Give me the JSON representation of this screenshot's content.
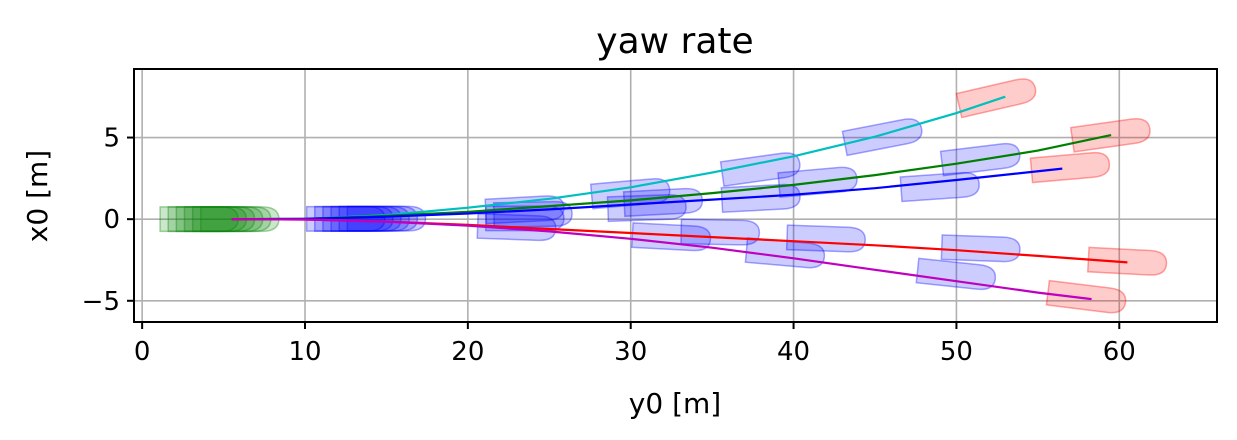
{
  "chart_data": {
    "type": "line",
    "title": "yaw rate",
    "xlabel": "y0 [m]",
    "ylabel": "x0 [m]",
    "xlim": [
      -0.5,
      66
    ],
    "ylim": [
      -6.3,
      9.2
    ],
    "xticks": [
      0,
      10,
      20,
      30,
      40,
      50,
      60
    ],
    "yticks": [
      -5,
      0,
      5
    ],
    "ytick_labels": [
      "−5",
      "0",
      "5"
    ],
    "grid": true,
    "series": [
      {
        "color": "#00bfbf",
        "x": [
          5.5,
          10,
          15,
          20,
          25,
          30,
          35,
          40,
          45,
          50,
          53
        ],
        "y": [
          0,
          0.02,
          0.25,
          0.7,
          1.25,
          1.95,
          2.85,
          3.85,
          5.05,
          6.5,
          7.5
        ]
      },
      {
        "color": "#008000",
        "x": [
          5.5,
          10,
          15,
          20,
          25,
          30,
          35,
          40,
          45,
          50,
          55,
          59.5
        ],
        "y": [
          0,
          0.02,
          0.2,
          0.45,
          0.8,
          1.15,
          1.6,
          2.1,
          2.7,
          3.4,
          4.2,
          5.15
        ]
      },
      {
        "color": "#0000ff",
        "x": [
          5.5,
          10,
          15,
          20,
          25,
          30,
          35,
          40,
          45,
          50,
          56.5
        ],
        "y": [
          0,
          0.02,
          0.15,
          0.35,
          0.6,
          0.9,
          1.2,
          1.5,
          1.9,
          2.4,
          3.1
        ]
      },
      {
        "color": "#ff0000",
        "x": [
          5.5,
          10,
          15,
          20,
          25,
          30,
          35,
          40,
          45,
          50,
          55,
          60.5
        ],
        "y": [
          0,
          -0.02,
          -0.15,
          -0.35,
          -0.6,
          -0.85,
          -1.1,
          -1.35,
          -1.6,
          -1.9,
          -2.25,
          -2.65
        ]
      },
      {
        "color": "#bf00bf",
        "x": [
          5.5,
          10,
          15,
          20,
          25,
          30,
          35,
          40,
          45,
          50,
          55,
          58.3
        ],
        "y": [
          0,
          -0.02,
          -0.15,
          -0.4,
          -0.75,
          -1.2,
          -1.75,
          -2.4,
          -3.1,
          -3.8,
          -4.5,
          -4.9
        ]
      }
    ],
    "vehicles": [
      {
        "x": 3.5,
        "y": 0,
        "angle": 0,
        "color": "#008000"
      },
      {
        "x": 4,
        "y": 0,
        "angle": 0,
        "color": "#008000"
      },
      {
        "x": 4.5,
        "y": 0,
        "angle": 0,
        "color": "#008000"
      },
      {
        "x": 5,
        "y": 0,
        "angle": 0,
        "color": "#008000"
      },
      {
        "x": 5.5,
        "y": 0,
        "angle": 0,
        "color": "#008000"
      },
      {
        "x": 6,
        "y": 0,
        "angle": 0,
        "color": "#008000"
      },
      {
        "x": 12.5,
        "y": 0.02,
        "angle": 0,
        "color": "#0000ff"
      },
      {
        "x": 13,
        "y": 0.02,
        "angle": 0,
        "color": "#0000ff"
      },
      {
        "x": 13.5,
        "y": 0.02,
        "angle": 0,
        "color": "#0000ff"
      },
      {
        "x": 14,
        "y": 0.02,
        "angle": 0,
        "color": "#0000ff"
      },
      {
        "x": 14.5,
        "y": 0.03,
        "angle": 0,
        "color": "#0000ff"
      },
      {
        "x": 15,
        "y": 0.03,
        "angle": 0,
        "color": "#0000ff"
      },
      {
        "x": 23.5,
        "y": 0.6,
        "angle": 3,
        "color": "#0000ff"
      },
      {
        "x": 24,
        "y": 0.3,
        "angle": 1,
        "color": "#0000ff"
      },
      {
        "x": 23.5,
        "y": 0.05,
        "angle": 0,
        "color": "#0000ff"
      },
      {
        "x": 23,
        "y": -0.5,
        "angle": -2,
        "color": "#0000ff"
      },
      {
        "x": 30,
        "y": 1.6,
        "angle": 5,
        "color": "#0000ff"
      },
      {
        "x": 32,
        "y": 1.05,
        "angle": 3,
        "color": "#0000ff"
      },
      {
        "x": 31,
        "y": 0.7,
        "angle": 2,
        "color": "#0000ff"
      },
      {
        "x": 35.5,
        "y": -0.8,
        "angle": -1,
        "color": "#0000ff"
      },
      {
        "x": 32.5,
        "y": -1.1,
        "angle": -3,
        "color": "#0000ff"
      },
      {
        "x": 38,
        "y": 3.1,
        "angle": 8,
        "color": "#0000ff"
      },
      {
        "x": 41.5,
        "y": 2.3,
        "angle": 5,
        "color": "#0000ff"
      },
      {
        "x": 38,
        "y": 1.3,
        "angle": 3,
        "color": "#0000ff"
      },
      {
        "x": 42,
        "y": -1.2,
        "angle": -2,
        "color": "#0000ff"
      },
      {
        "x": 39.5,
        "y": -2.1,
        "angle": -5,
        "color": "#0000ff"
      },
      {
        "x": 45.5,
        "y": 5.1,
        "angle": 11,
        "color": "#0000ff"
      },
      {
        "x": 51.5,
        "y": 3.7,
        "angle": 7,
        "color": "#0000ff"
      },
      {
        "x": 49,
        "y": 2.0,
        "angle": 4,
        "color": "#0000ff"
      },
      {
        "x": 51.5,
        "y": -1.8,
        "angle": -2,
        "color": "#0000ff"
      },
      {
        "x": 50,
        "y": -3.4,
        "angle": -6,
        "color": "#0000ff"
      },
      {
        "x": 52.5,
        "y": 7.5,
        "angle": 13,
        "color": "#ff0000"
      },
      {
        "x": 59.5,
        "y": 5.2,
        "angle": 8,
        "color": "#ff0000"
      },
      {
        "x": 57,
        "y": 3.2,
        "angle": 5,
        "color": "#ff0000"
      },
      {
        "x": 60.5,
        "y": -2.6,
        "angle": -3,
        "color": "#ff0000"
      },
      {
        "x": 58,
        "y": -4.8,
        "angle": -7,
        "color": "#ff0000"
      }
    ]
  }
}
